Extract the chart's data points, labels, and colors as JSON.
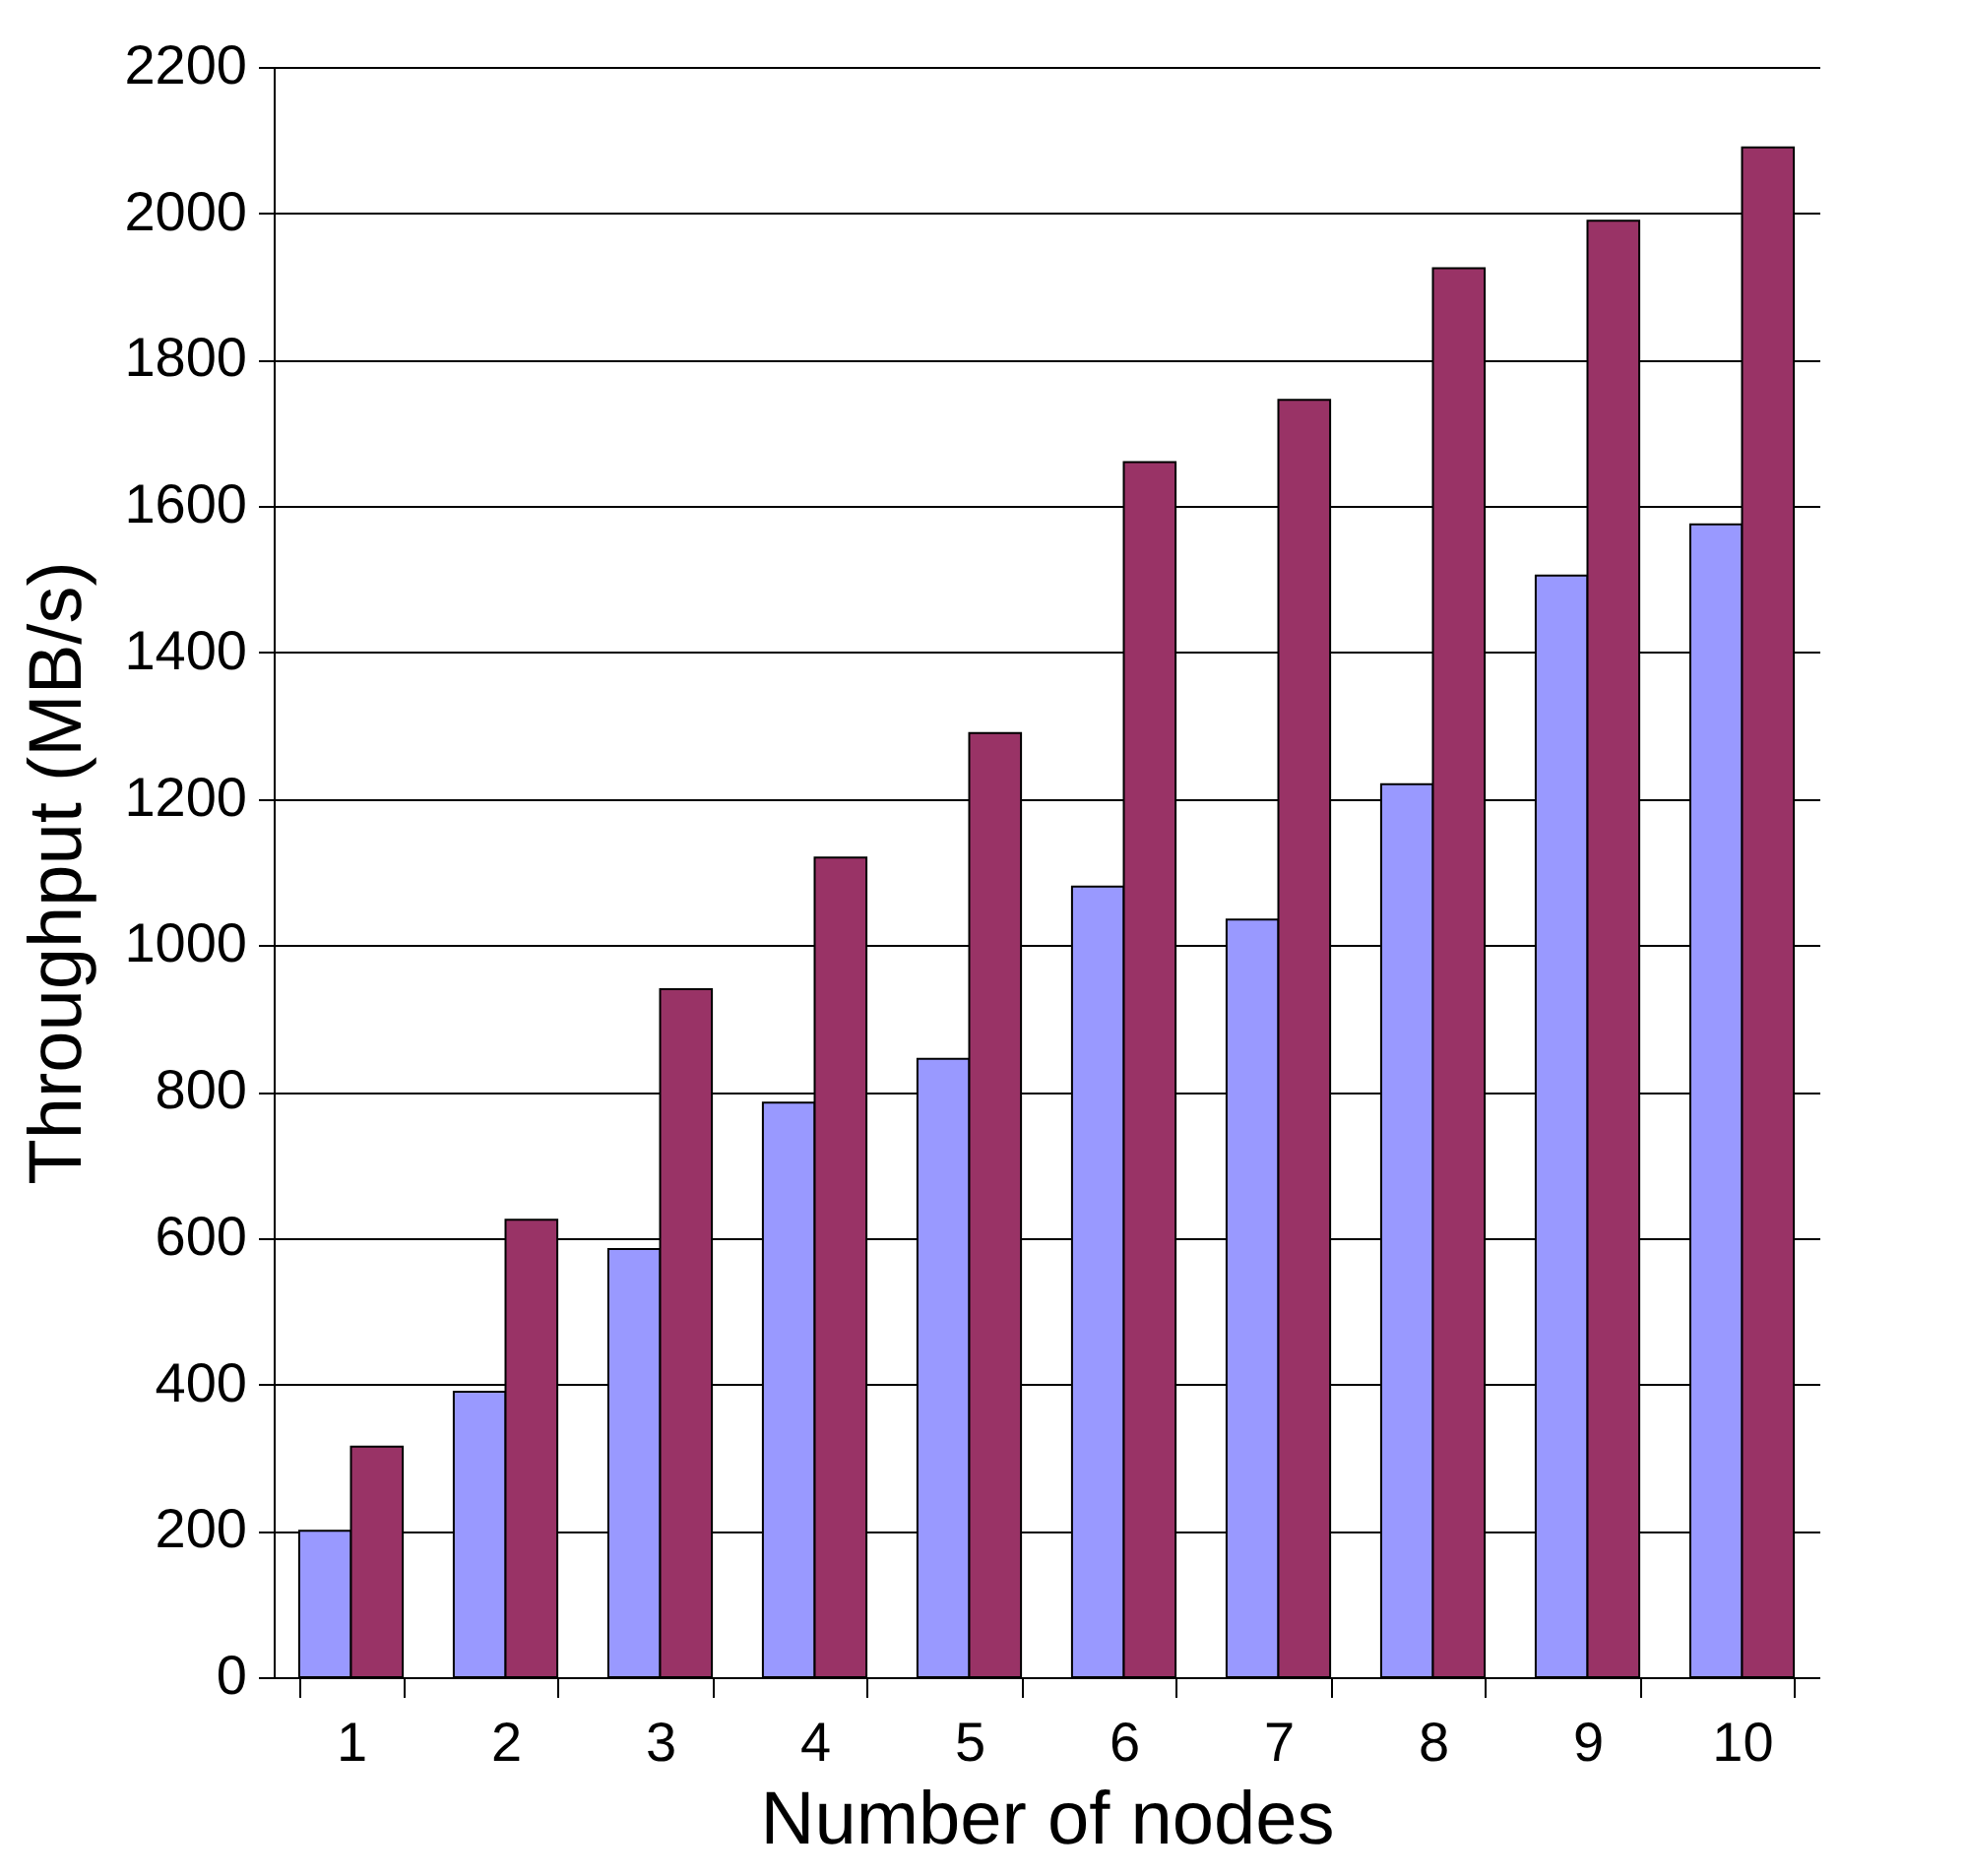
{
  "chart_data": {
    "type": "bar",
    "xlabel": "Number of nodes",
    "ylabel": "Throughput (MB/s)",
    "categories": [
      "1",
      "2",
      "3",
      "4",
      "5",
      "6",
      "7",
      "8",
      "9",
      "10"
    ],
    "series": [
      {
        "color": "#9999ff",
        "values": [
          200,
          390,
          585,
          785,
          845,
          1080,
          1035,
          1220,
          1505,
          1575
        ]
      },
      {
        "color": "#993366",
        "values": [
          315,
          625,
          940,
          1120,
          1290,
          1660,
          1745,
          1925,
          1990,
          2090
        ]
      }
    ],
    "ylim": [
      0,
      2200
    ],
    "yticks": [
      0,
      200,
      400,
      600,
      800,
      1000,
      1200,
      1400,
      1600,
      1800,
      2000,
      2200
    ],
    "grid": "y",
    "legend": false
  }
}
